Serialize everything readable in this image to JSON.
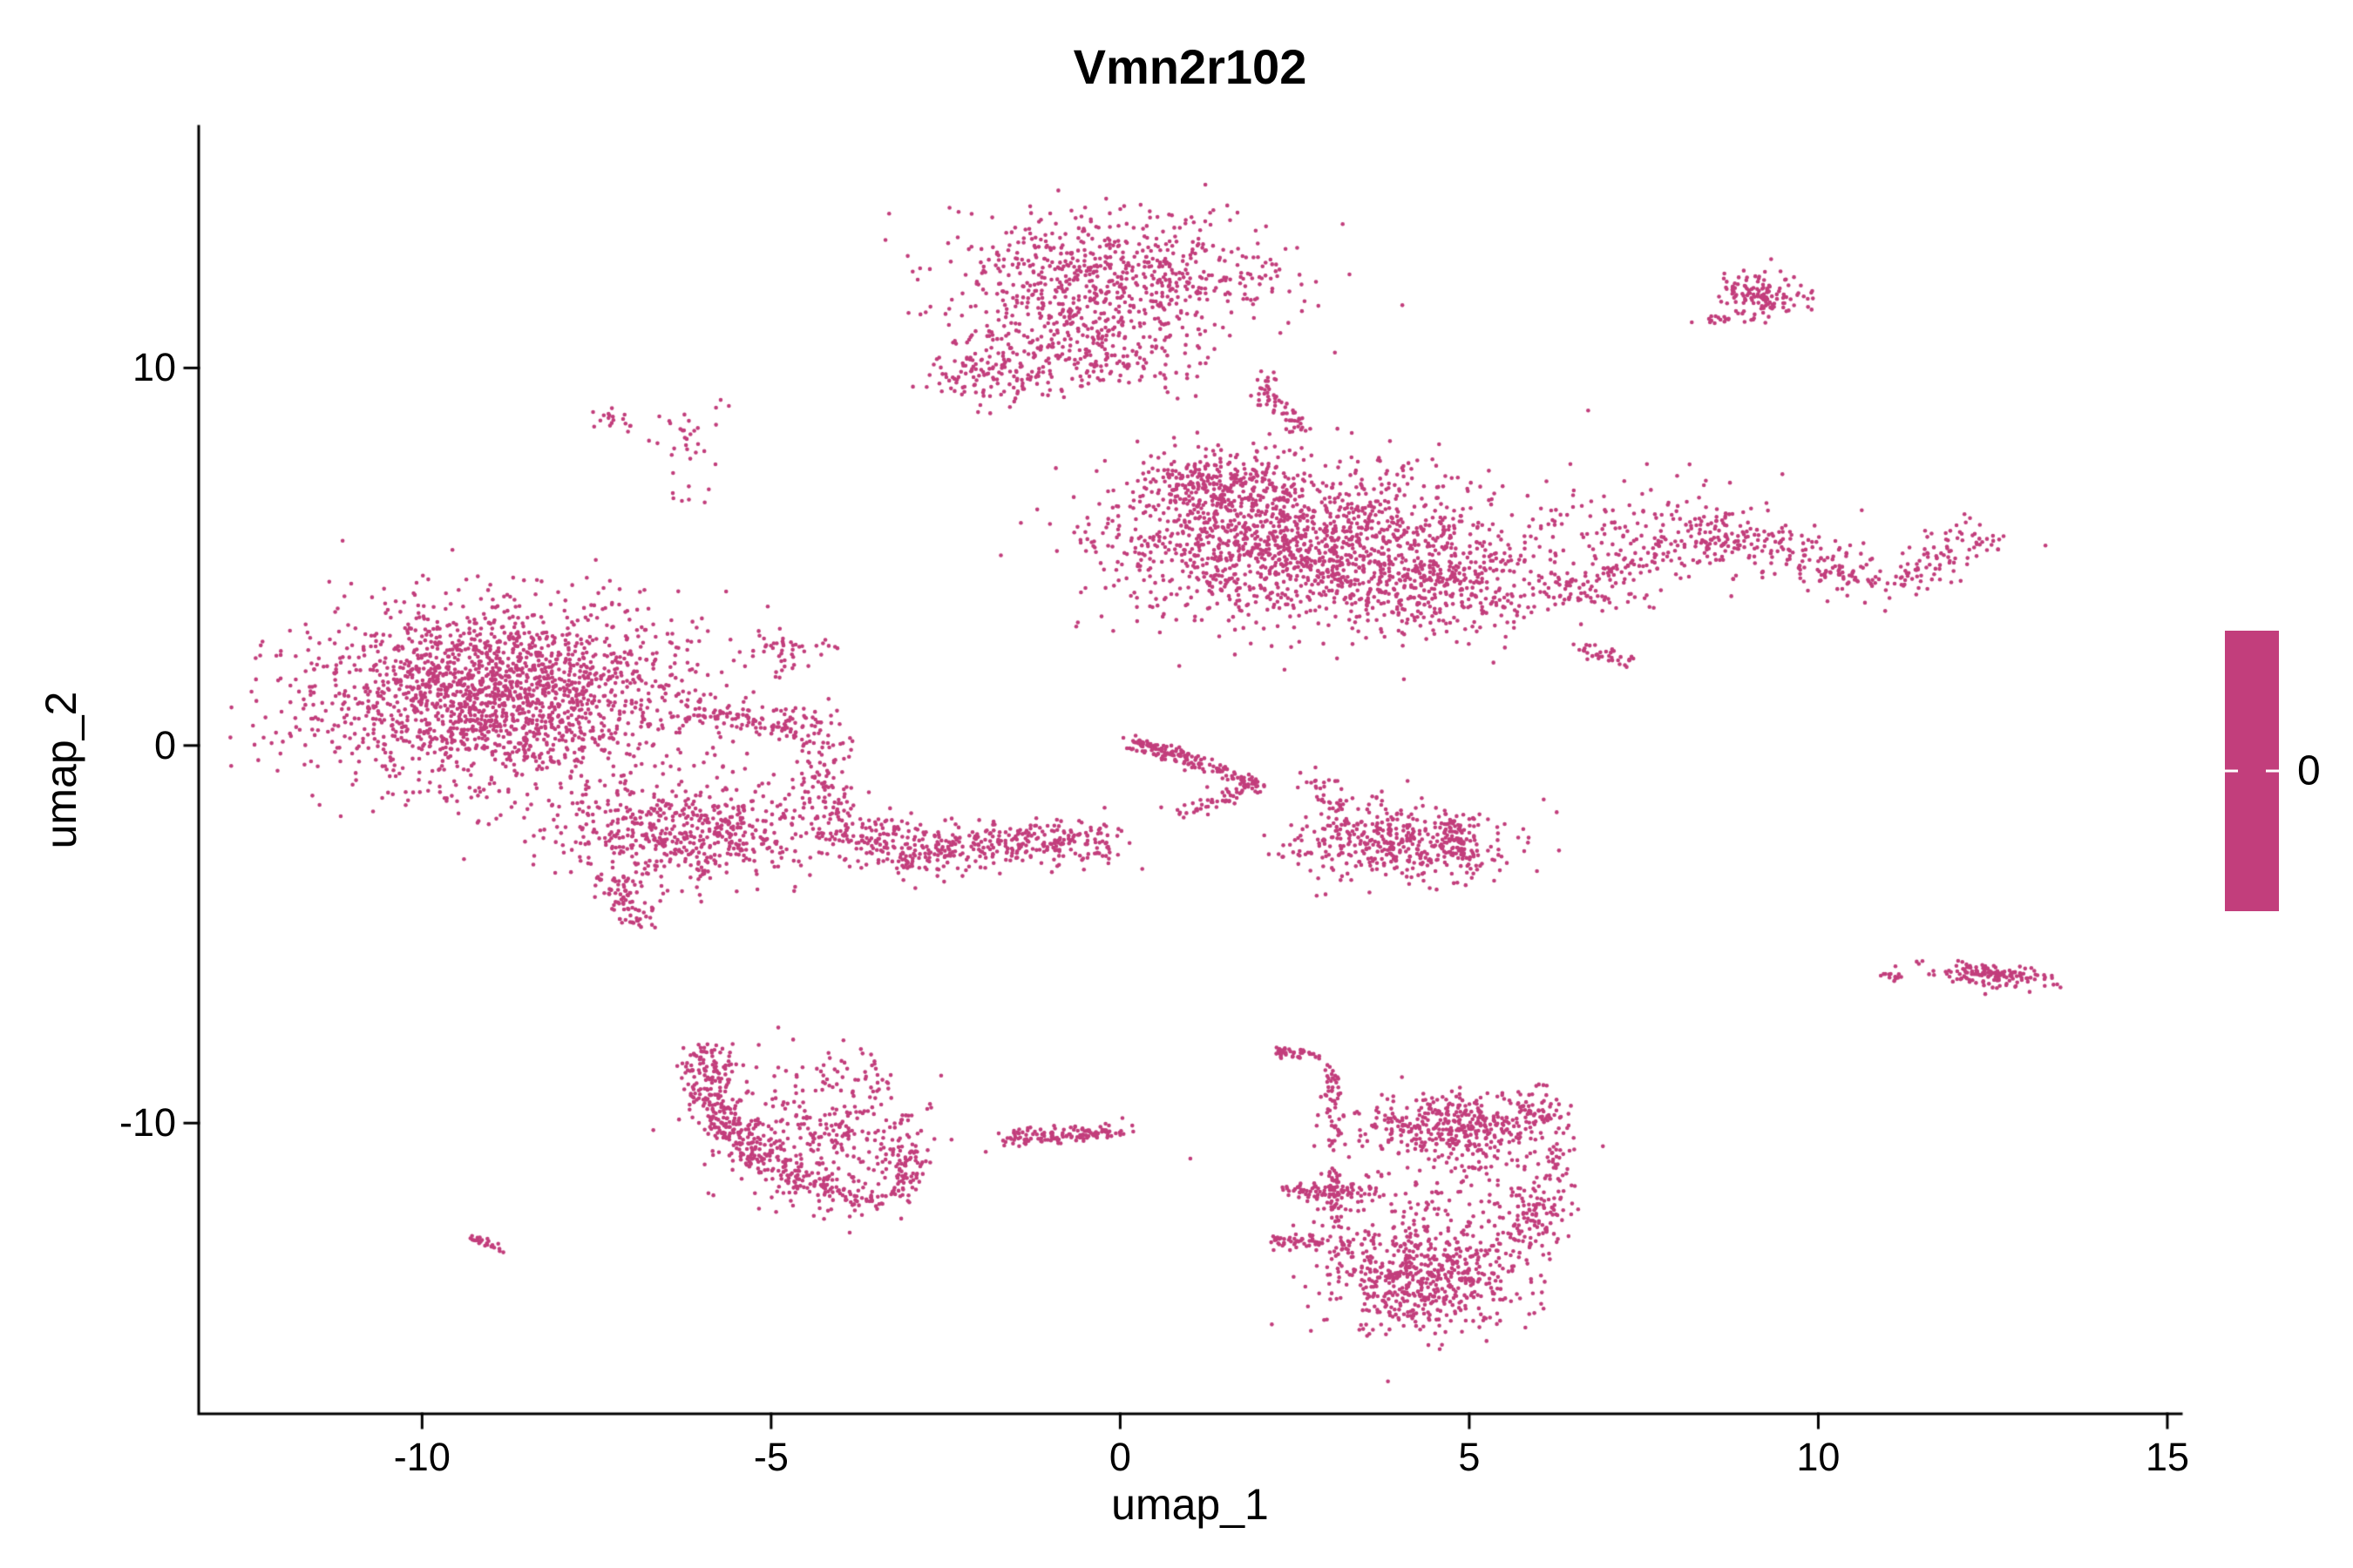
{
  "chart_data": {
    "type": "scatter",
    "title": "Vmn2r102",
    "xlabel": "umap_1",
    "ylabel": "umap_2",
    "xlim": [
      -13.2,
      15.2
    ],
    "ylim": [
      -17.7,
      16.4
    ],
    "x_ticks": [
      -10,
      -5,
      0,
      5,
      10,
      15
    ],
    "y_ticks": [
      -10,
      0,
      10
    ],
    "grid": false,
    "legend_position": "right",
    "background": "#FFFFFF",
    "axis_color": "#000000",
    "point_color": "#C23E7C",
    "point_radius_px": 2.3,
    "legend": {
      "tick_label": "0",
      "color": "#C23E7C"
    },
    "clusters": [
      {
        "name": "top-center-core",
        "kind": "gaussian",
        "center": [
          -0.2,
          12.4
        ],
        "sd": [
          1.25,
          0.85
        ],
        "n": 700
      },
      {
        "name": "top-center-lower-left-tail",
        "kind": "gaussian",
        "center": [
          -1.9,
          9.9
        ],
        "sd": [
          0.45,
          0.45
        ],
        "n": 120
      },
      {
        "name": "top-center-lower-lobe",
        "kind": "gaussian",
        "center": [
          -0.4,
          10.4
        ],
        "sd": [
          0.75,
          0.6
        ],
        "n": 230
      },
      {
        "name": "top-center-right-streak",
        "kind": "path",
        "points": [
          [
            1.95,
            9.8
          ],
          [
            2.3,
            9.0
          ],
          [
            2.6,
            8.3
          ]
        ],
        "sd": 0.12,
        "n": 60
      },
      {
        "name": "top-right-island",
        "kind": "gaussian",
        "center": [
          9.15,
          11.9
        ],
        "sd": [
          0.3,
          0.33
        ],
        "n": 140,
        "rot": -30
      },
      {
        "name": "top-right-island-spur",
        "kind": "gaussian",
        "center": [
          8.5,
          11.2
        ],
        "sd": [
          0.15,
          0.15
        ],
        "n": 10
      },
      {
        "name": "upper-left-speck-a",
        "kind": "path",
        "points": [
          [
            -7.6,
            8.8
          ],
          [
            -7.0,
            8.5
          ]
        ],
        "sd": 0.1,
        "n": 18
      },
      {
        "name": "upper-left-speck-b",
        "kind": "gaussian",
        "center": [
          -6.2,
          8.3
        ],
        "sd": [
          0.25,
          0.55
        ],
        "n": 30
      },
      {
        "name": "upper-left-speck-c",
        "kind": "gaussian",
        "center": [
          -6.3,
          6.7
        ],
        "sd": [
          0.18,
          0.18
        ],
        "n": 6
      },
      {
        "name": "mid-right-core",
        "kind": "gaussian",
        "center": [
          2.6,
          5.3
        ],
        "sd": [
          1.35,
          1.05
        ],
        "n": 1500
      },
      {
        "name": "mid-right-top-left-lobe",
        "kind": "gaussian",
        "center": [
          1.3,
          6.9
        ],
        "sd": [
          0.55,
          0.45
        ],
        "n": 250
      },
      {
        "name": "mid-right-east-lobe",
        "kind": "gaussian",
        "center": [
          4.6,
          4.3
        ],
        "sd": [
          0.8,
          0.7
        ],
        "n": 300
      },
      {
        "name": "right-wavy-band",
        "kind": "path",
        "points": [
          [
            5.9,
            4.3
          ],
          [
            6.8,
            4.0
          ],
          [
            7.6,
            4.9
          ],
          [
            8.6,
            5.6
          ],
          [
            9.6,
            5.2
          ],
          [
            10.4,
            4.4
          ],
          [
            11.2,
            4.5
          ],
          [
            11.9,
            5.2
          ],
          [
            12.4,
            5.6
          ]
        ],
        "sd": 0.3,
        "n": 430
      },
      {
        "name": "right-band-sparse-halo",
        "kind": "gaussian",
        "center": [
          7.8,
          5.6
        ],
        "sd": [
          1.2,
          0.65
        ],
        "n": 170
      },
      {
        "name": "right-band-lower-arm",
        "kind": "path",
        "points": [
          [
            6.6,
            2.6
          ],
          [
            7.4,
            2.2
          ]
        ],
        "sd": 0.12,
        "n": 35
      },
      {
        "name": "left-large-core",
        "kind": "gaussian",
        "center": [
          -8.9,
          1.4
        ],
        "sd": [
          1.35,
          1.2
        ],
        "n": 2000
      },
      {
        "name": "left-lower-lobe",
        "kind": "gaussian",
        "center": [
          -6.2,
          -2.3
        ],
        "sd": [
          1.05,
          0.65
        ],
        "n": 600
      },
      {
        "name": "left-bottom-tail",
        "kind": "path",
        "points": [
          [
            -7.3,
            -3.6
          ],
          [
            -6.9,
            -4.6
          ]
        ],
        "sd": 0.18,
        "n": 80
      },
      {
        "name": "left-right-arm",
        "kind": "path",
        "points": [
          [
            -6.2,
            0.9
          ],
          [
            -5.2,
            0.6
          ],
          [
            -4.3,
            0.5
          ]
        ],
        "sd": 0.25,
        "n": 130
      },
      {
        "name": "left-upper-spur",
        "kind": "gaussian",
        "center": [
          -4.9,
          2.4
        ],
        "sd": [
          0.35,
          0.35
        ],
        "n": 45
      },
      {
        "name": "left-descending-bridge",
        "kind": "path",
        "points": [
          [
            -4.4,
            0.2
          ],
          [
            -4.2,
            -1.0
          ],
          [
            -4.0,
            -1.9
          ]
        ],
        "sd": 0.22,
        "n": 90
      },
      {
        "name": "center-band",
        "kind": "path",
        "points": [
          [
            -3.9,
            -2.2
          ],
          [
            -3.0,
            -2.8
          ],
          [
            -2.0,
            -2.7
          ],
          [
            -0.9,
            -2.5
          ],
          [
            -0.3,
            -2.6
          ]
        ],
        "sd": 0.32,
        "n": 460
      },
      {
        "name": "center-diagonal-streak",
        "kind": "path",
        "points": [
          [
            0.1,
            0.1
          ],
          [
            1.0,
            -0.4
          ],
          [
            2.0,
            -1.05
          ]
        ],
        "sd": 0.1,
        "n": 170
      },
      {
        "name": "center-diagonal-streak-lower",
        "kind": "path",
        "points": [
          [
            0.8,
            -1.8
          ],
          [
            1.9,
            -1.15
          ]
        ],
        "sd": 0.1,
        "n": 50
      },
      {
        "name": "center-right-blob",
        "kind": "gaussian",
        "center": [
          4.0,
          -2.6
        ],
        "sd": [
          0.75,
          0.5
        ],
        "n": 420
      },
      {
        "name": "center-right-blob-east-edge",
        "kind": "path",
        "points": [
          [
            4.8,
            -2.0
          ],
          [
            4.95,
            -3.2
          ]
        ],
        "sd": 0.12,
        "n": 60
      },
      {
        "name": "center-right-upper-trail",
        "kind": "path",
        "points": [
          [
            2.8,
            -0.9
          ],
          [
            3.2,
            -1.7
          ]
        ],
        "sd": 0.15,
        "n": 40
      },
      {
        "name": "far-right-island",
        "kind": "gaussian",
        "center": [
          12.5,
          -6.1
        ],
        "sd": [
          0.45,
          0.16
        ],
        "n": 150,
        "rot": -8
      },
      {
        "name": "far-right-island-dash",
        "kind": "path",
        "points": [
          [
            10.9,
            -6.1
          ],
          [
            11.2,
            -6.15
          ]
        ],
        "sd": 0.05,
        "n": 14
      },
      {
        "name": "bottom-left-crescent-arc",
        "kind": "path",
        "points": [
          [
            -5.9,
            -8.0
          ],
          [
            -5.95,
            -9.2
          ],
          [
            -5.5,
            -10.4
          ],
          [
            -4.9,
            -11.2
          ],
          [
            -4.2,
            -11.8
          ],
          [
            -3.4,
            -12.2
          ]
        ],
        "sd": 0.22,
        "n": 430
      },
      {
        "name": "bottom-left-crescent-fill",
        "kind": "gaussian",
        "center": [
          -4.3,
          -10.3
        ],
        "sd": [
          0.75,
          0.9
        ],
        "n": 280
      },
      {
        "name": "bottom-left-crescent-east-edge",
        "kind": "path",
        "points": [
          [
            -3.1,
            -9.9
          ],
          [
            -3.0,
            -11.0
          ],
          [
            -3.2,
            -12.0
          ]
        ],
        "sd": 0.15,
        "n": 90
      },
      {
        "name": "bottom-left-crescent-top-spur",
        "kind": "gaussian",
        "center": [
          -3.9,
          -8.6
        ],
        "sd": [
          0.3,
          0.25
        ],
        "n": 25
      },
      {
        "name": "bottom-center-streak",
        "kind": "path",
        "points": [
          [
            -1.65,
            -10.4
          ],
          [
            -0.8,
            -10.3
          ],
          [
            0.05,
            -10.2
          ]
        ],
        "sd": 0.13,
        "n": 130
      },
      {
        "name": "bottom-right-top-dash",
        "kind": "path",
        "points": [
          [
            2.2,
            -8.1
          ],
          [
            2.8,
            -8.2
          ]
        ],
        "sd": 0.08,
        "n": 45
      },
      {
        "name": "bottom-right-descender",
        "kind": "path",
        "points": [
          [
            3.0,
            -8.6
          ],
          [
            3.1,
            -10.5
          ]
        ],
        "sd": 0.09,
        "n": 55
      },
      {
        "name": "bottom-right-upper-blob",
        "kind": "gaussian",
        "center": [
          4.8,
          -10.1
        ],
        "sd": [
          0.65,
          0.45
        ],
        "n": 380
      },
      {
        "name": "bottom-right-upper-hook",
        "kind": "gaussian",
        "center": [
          5.95,
          -9.7
        ],
        "sd": [
          0.2,
          0.35
        ],
        "n": 60
      },
      {
        "name": "bottom-right-dash-1",
        "kind": "path",
        "points": [
          [
            2.3,
            -11.75
          ],
          [
            3.5,
            -11.85
          ]
        ],
        "sd": 0.1,
        "n": 70
      },
      {
        "name": "bottom-right-vertical-line",
        "kind": "path",
        "points": [
          [
            3.05,
            -11.2
          ],
          [
            3.1,
            -12.8
          ]
        ],
        "sd": 0.07,
        "n": 55
      },
      {
        "name": "bottom-right-dash-2",
        "kind": "path",
        "points": [
          [
            2.15,
            -13.1
          ],
          [
            3.3,
            -13.25
          ]
        ],
        "sd": 0.09,
        "n": 60
      },
      {
        "name": "bottom-right-lower-blob",
        "kind": "gaussian",
        "center": [
          4.35,
          -14.1
        ],
        "sd": [
          0.72,
          0.72
        ],
        "n": 600
      },
      {
        "name": "bottom-right-east-lobe",
        "kind": "gaussian",
        "center": [
          5.85,
          -12.5
        ],
        "sd": [
          0.25,
          0.6
        ],
        "n": 130
      },
      {
        "name": "bottom-right-east-dangle",
        "kind": "gaussian",
        "center": [
          6.2,
          -11.0
        ],
        "sd": [
          0.15,
          0.35
        ],
        "n": 30
      },
      {
        "name": "bottom-right-sparse-middle",
        "kind": "gaussian",
        "center": [
          4.4,
          -11.9
        ],
        "sd": [
          0.8,
          0.8
        ],
        "n": 120
      },
      {
        "name": "bottom-far-left-speck",
        "kind": "path",
        "points": [
          [
            -9.3,
            -13.05
          ],
          [
            -8.9,
            -13.3
          ]
        ],
        "sd": 0.07,
        "n": 26
      }
    ]
  }
}
